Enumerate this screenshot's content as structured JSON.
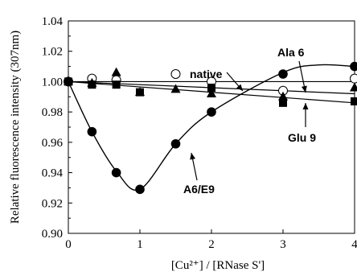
{
  "chart_data": {
    "type": "scatter",
    "xlabel": "[Cu²⁺] / [RNase S']",
    "ylabel": "Relative fluorescence intensity (307nm)",
    "xlim": [
      0,
      4
    ],
    "ylim": [
      0.9,
      1.04
    ],
    "xticks": [
      "0",
      "1",
      "2",
      "3",
      "4"
    ],
    "yticks": [
      "0.90",
      "0.92",
      "0.94",
      "0.96",
      "0.98",
      "1.00",
      "1.02",
      "1.04"
    ],
    "grid": false,
    "series": [
      {
        "name": "native",
        "marker": "open-circle",
        "x": [
          0,
          0.33,
          0.67,
          1.5,
          2,
          3,
          4
        ],
        "y": [
          1.0,
          1.002,
          1.001,
          1.005,
          1.0,
          0.994,
          1.002
        ],
        "fit_line": [
          [
            0,
            1.0
          ],
          [
            4,
            1.0
          ]
        ]
      },
      {
        "name": "Ala 6",
        "marker": "filled-triangle",
        "x": [
          0,
          0.33,
          0.67,
          1,
          1.5,
          2,
          3,
          4
        ],
        "y": [
          1.0,
          0.999,
          1.006,
          0.993,
          0.995,
          0.992,
          0.99,
          0.996
        ],
        "fit_line": [
          [
            0,
            1.0
          ],
          [
            4,
            0.992
          ]
        ]
      },
      {
        "name": "Glu 9",
        "marker": "filled-square",
        "x": [
          0,
          0.33,
          0.67,
          1,
          2,
          3,
          4
        ],
        "y": [
          1.0,
          0.998,
          0.998,
          0.993,
          0.996,
          0.986,
          0.987
        ],
        "fit_line": [
          [
            0,
            1.0
          ],
          [
            4,
            0.986
          ]
        ]
      },
      {
        "name": "A6/E9",
        "marker": "filled-circle",
        "x": [
          0,
          0.33,
          0.67,
          1,
          1.5,
          2,
          3,
          4
        ],
        "y": [
          1.0,
          0.967,
          0.94,
          0.929,
          0.959,
          0.98,
          1.005,
          1.01
        ],
        "curve": [
          [
            0,
            1.0
          ],
          [
            0.33,
            0.967
          ],
          [
            0.67,
            0.941
          ],
          [
            1,
            0.929
          ],
          [
            1.5,
            0.959
          ],
          [
            2,
            0.98
          ],
          [
            3,
            1.006
          ],
          [
            3.5,
            1.011
          ],
          [
            4,
            1.01
          ]
        ]
      }
    ],
    "annotations": [
      {
        "text": "native",
        "series": "native"
      },
      {
        "text": "Ala 6",
        "series": "Ala 6"
      },
      {
        "text": "Glu 9",
        "series": "Glu 9"
      },
      {
        "text": "A6/E9",
        "series": "A6/E9"
      }
    ]
  }
}
